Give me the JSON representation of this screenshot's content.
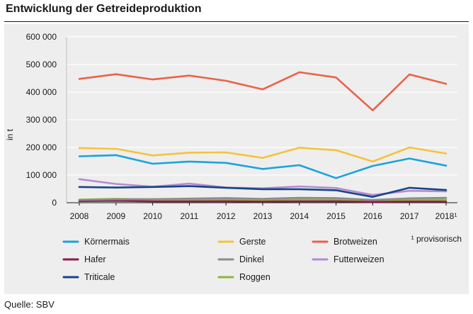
{
  "title": "Entwicklung der Getreideproduktion",
  "source": "Quelle: SBV",
  "footnote": "¹ provisorisch",
  "chart_data": {
    "type": "line",
    "ylabel": "in t",
    "ylim": [
      0,
      600000
    ],
    "yticks": [
      0,
      100000,
      200000,
      300000,
      400000,
      500000,
      600000
    ],
    "ytick_labels": [
      "0",
      "100 000",
      "200 000",
      "300 000",
      "400 000",
      "500 000",
      "600 000"
    ],
    "categories": [
      "2008",
      "2009",
      "2010",
      "2011",
      "2012",
      "2013",
      "2014",
      "2015",
      "2016",
      "2017",
      "2018¹"
    ],
    "series": [
      {
        "name": "Körnermais",
        "color": "#1aa3dd",
        "values": [
          168000,
          172000,
          141000,
          149000,
          144000,
          122000,
          136000,
          89000,
          133000,
          160000,
          134000
        ]
      },
      {
        "name": "Gerste",
        "color": "#f5c33b",
        "values": [
          198000,
          195000,
          171000,
          181000,
          182000,
          162000,
          199000,
          190000,
          149000,
          200000,
          178000
        ]
      },
      {
        "name": "Brotweizen",
        "color": "#e8634a",
        "values": [
          448000,
          465000,
          446000,
          460000,
          441000,
          410000,
          472000,
          453000,
          334000,
          464000,
          430000
        ]
      },
      {
        "name": "Hafer",
        "color": "#8c1a4f",
        "values": [
          6000,
          7000,
          5000,
          5000,
          5000,
          4000,
          5000,
          5000,
          3000,
          4000,
          4000
        ]
      },
      {
        "name": "Dinkel",
        "color": "#8c8c8c",
        "values": [
          10000,
          12000,
          13000,
          15000,
          17000,
          14000,
          18000,
          17000,
          10000,
          16000,
          18000
        ]
      },
      {
        "name": "Futterweizen",
        "color": "#b48bd1",
        "values": [
          85000,
          68000,
          58000,
          69000,
          55000,
          52000,
          59000,
          53000,
          28000,
          43000,
          41000
        ]
      },
      {
        "name": "Triticale",
        "color": "#17448a",
        "values": [
          57000,
          55000,
          57000,
          60000,
          54000,
          49000,
          49000,
          45000,
          21000,
          54000,
          46000
        ]
      },
      {
        "name": "Roggen",
        "color": "#8db53c",
        "values": [
          11000,
          14000,
          12000,
          12000,
          11000,
          10000,
          12000,
          11000,
          9000,
          10000,
          11000
        ]
      }
    ]
  }
}
